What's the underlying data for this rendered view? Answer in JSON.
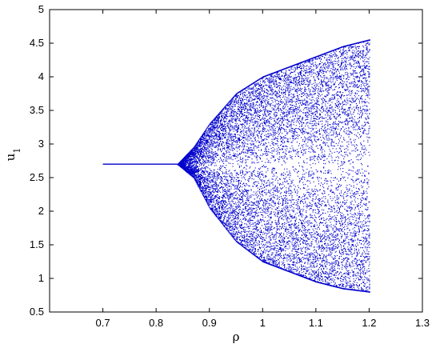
{
  "chart_data": {
    "type": "scatter",
    "title": "",
    "xlabel": "ρ",
    "ylabel": "u1",
    "xlim": [
      0.6,
      1.3
    ],
    "ylim": [
      0.5,
      5
    ],
    "x_ticks": [
      0.7,
      0.8,
      0.9,
      1,
      1.1,
      1.2,
      1.3
    ],
    "x_tick_labels": [
      "0.7",
      "0.8",
      "0.9",
      "1",
      "1.1",
      "1.2",
      "1.3"
    ],
    "y_ticks": [
      0.5,
      1,
      1.5,
      2,
      2.5,
      3,
      3.5,
      4,
      4.5,
      5
    ],
    "y_tick_labels": [
      "0.5",
      "1",
      "1.5",
      "2",
      "2.5",
      "3",
      "3.5",
      "4",
      "4.5",
      "5"
    ],
    "grid": false,
    "legend": "none",
    "colors": {
      "series": "#0000cc",
      "axes": "#000000"
    },
    "series": [
      {
        "kind": "bifurcation-diagram",
        "x_range": [
          0.7,
          1.2
        ],
        "fixed_point_segment": {
          "x": [
            0.7,
            0.84
          ],
          "y": 2.7
        },
        "chaotic_region": {
          "x_start": 0.84,
          "x_end": 1.2,
          "center_y": 2.7,
          "envelope": [
            {
              "x": 0.84,
              "ymin": 2.7,
              "ymax": 2.7
            },
            {
              "x": 0.87,
              "ymin": 2.5,
              "ymax": 2.95
            },
            {
              "x": 0.9,
              "ymin": 2.05,
              "ymax": 3.3
            },
            {
              "x": 0.95,
              "ymin": 1.55,
              "ymax": 3.75
            },
            {
              "x": 1.0,
              "ymin": 1.25,
              "ymax": 4.0
            },
            {
              "x": 1.05,
              "ymin": 1.1,
              "ymax": 4.15
            },
            {
              "x": 1.1,
              "ymin": 0.95,
              "ymax": 4.3
            },
            {
              "x": 1.15,
              "ymin": 0.85,
              "ymax": 4.45
            },
            {
              "x": 1.2,
              "ymin": 0.8,
              "ymax": 4.55
            }
          ]
        }
      }
    ]
  }
}
